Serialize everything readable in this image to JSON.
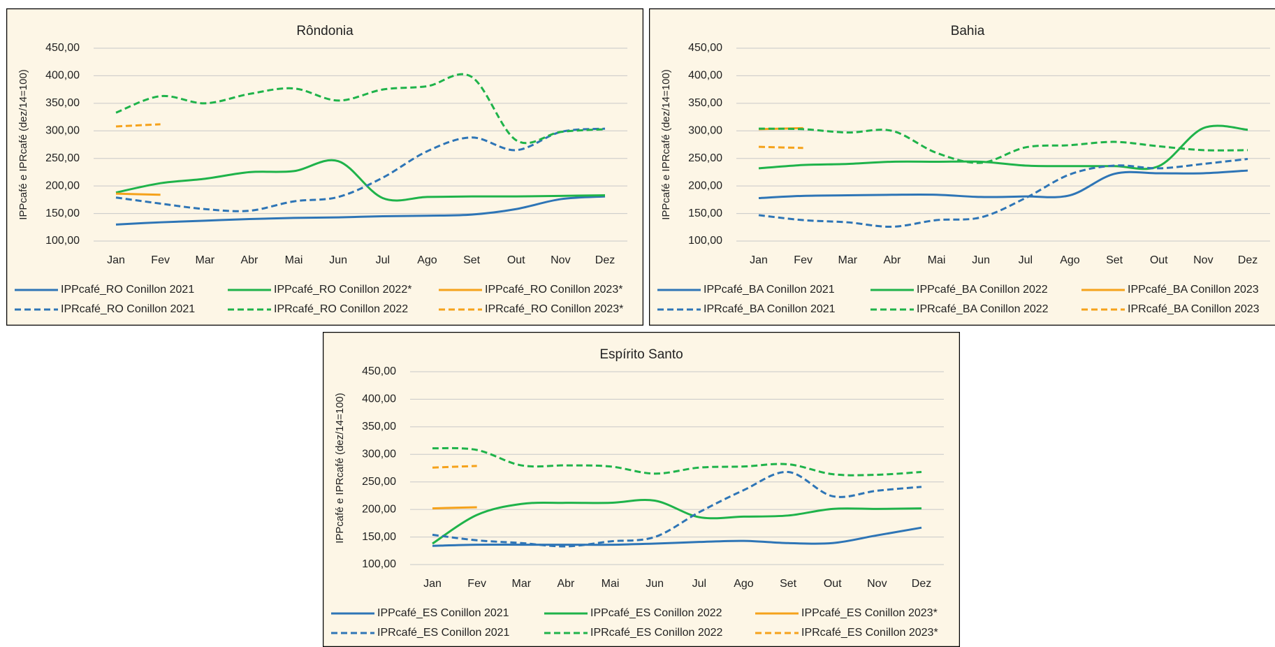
{
  "chart_data": [
    {
      "type": "line",
      "title": "Rôndonia",
      "y_label": "IPPcafé e IPRcafé (dez/14=100)",
      "categories": [
        "Jan",
        "Fev",
        "Mar",
        "Abr",
        "Mai",
        "Jun",
        "Jul",
        "Ago",
        "Set",
        "Out",
        "Nov",
        "Dez"
      ],
      "ylim": [
        100,
        450
      ],
      "yticks": [
        {
          "value": 100,
          "label": "100,00"
        },
        {
          "value": 150,
          "label": "150,00"
        },
        {
          "value": 200,
          "label": "200,00"
        },
        {
          "value": 250,
          "label": "250,00"
        },
        {
          "value": 300,
          "label": "300,00"
        },
        {
          "value": 350,
          "label": "350,00"
        },
        {
          "value": 400,
          "label": "400,00"
        },
        {
          "value": 450,
          "label": "450,00"
        }
      ],
      "grid": true,
      "series": [
        {
          "name": "IPPcafé_RO Conillon 2021",
          "color": "#2e75b6",
          "style": "solid",
          "values": [
            130,
            134,
            137,
            140,
            142,
            143,
            145,
            146,
            148,
            158,
            176,
            181
          ]
        },
        {
          "name": "IPPcafé_RO Conillon 2022*",
          "color": "#1fb34a",
          "style": "solid",
          "values": [
            188,
            205,
            213,
            225,
            227,
            245,
            178,
            180,
            181,
            181,
            182,
            183
          ]
        },
        {
          "name": "IPPcafé_RO Conillon 2023*",
          "color": "#f5a21b",
          "style": "solid",
          "values": [
            186,
            184,
            null,
            null,
            null,
            null,
            null,
            null,
            null,
            null,
            null,
            null
          ]
        },
        {
          "name": "IPRcafé_RO Conillon 2021",
          "color": "#2e75b6",
          "style": "dashed",
          "values": [
            179,
            168,
            158,
            155,
            172,
            180,
            215,
            263,
            288,
            265,
            298,
            304
          ]
        },
        {
          "name": "IPRcafé_RO Conillon 2022",
          "color": "#1fb34a",
          "style": "dashed",
          "values": [
            333,
            363,
            350,
            367,
            377,
            355,
            375,
            381,
            398,
            283,
            298,
            303
          ]
        },
        {
          "name": "IPRcafé_RO Conillon 2023*",
          "color": "#f5a21b",
          "style": "dashed",
          "values": [
            308,
            312,
            null,
            null,
            null,
            null,
            null,
            null,
            null,
            null,
            null,
            null
          ]
        }
      ]
    },
    {
      "type": "line",
      "title": "Bahia",
      "y_label": "IPPcafé e IPRcafé (dez/14=100)",
      "categories": [
        "Jan",
        "Fev",
        "Mar",
        "Abr",
        "Mai",
        "Jun",
        "Jul",
        "Ago",
        "Set",
        "Out",
        "Nov",
        "Dez"
      ],
      "ylim": [
        100,
        450
      ],
      "yticks": [
        {
          "value": 100,
          "label": "100,00"
        },
        {
          "value": 150,
          "label": "150,00"
        },
        {
          "value": 200,
          "label": "200,00"
        },
        {
          "value": 250,
          "label": "250,00"
        },
        {
          "value": 300,
          "label": "300,00"
        },
        {
          "value": 350,
          "label": "350,00"
        },
        {
          "value": 400,
          "label": "400,00"
        },
        {
          "value": 450,
          "label": "450,00"
        }
      ],
      "grid": true,
      "series": [
        {
          "name": "IPPcafé_BA Conillon 2021",
          "color": "#2e75b6",
          "style": "solid",
          "values": [
            178,
            182,
            183,
            184,
            184,
            180,
            181,
            183,
            222,
            223,
            223,
            228
          ]
        },
        {
          "name": "IPPcafé_BA Conillon 2022",
          "color": "#1fb34a",
          "style": "solid",
          "values": [
            232,
            238,
            240,
            244,
            244,
            244,
            237,
            236,
            236,
            236,
            305,
            302
          ]
        },
        {
          "name": "IPPcafé_BA Conillon 2023",
          "color": "#f5a21b",
          "style": "solid",
          "values": [
            303,
            305,
            null,
            null,
            null,
            null,
            null,
            null,
            null,
            null,
            null,
            null
          ]
        },
        {
          "name": "IPRcafé_BA Conillon 2021",
          "color": "#2e75b6",
          "style": "dashed",
          "values": [
            147,
            138,
            134,
            126,
            138,
            143,
            178,
            221,
            237,
            232,
            240,
            249
          ]
        },
        {
          "name": "IPRcafé_BA Conillon 2022",
          "color": "#1fb34a",
          "style": "dashed",
          "values": [
            304,
            303,
            297,
            300,
            260,
            242,
            270,
            274,
            280,
            272,
            265,
            265
          ]
        },
        {
          "name": "IPRcafé_BA Conillon 2023",
          "color": "#f5a21b",
          "style": "dashed",
          "values": [
            271,
            269,
            null,
            null,
            null,
            null,
            null,
            null,
            null,
            null,
            null,
            null
          ]
        }
      ]
    },
    {
      "type": "line",
      "title": "Espírito  Santo",
      "y_label": "IPPcafé e IPRcafé (dez/14=100)",
      "categories": [
        "Jan",
        "Fev",
        "Mar",
        "Abr",
        "Mai",
        "Jun",
        "Jul",
        "Ago",
        "Set",
        "Out",
        "Nov",
        "Dez"
      ],
      "ylim": [
        100,
        450
      ],
      "yticks": [
        {
          "value": 100,
          "label": "100,00"
        },
        {
          "value": 150,
          "label": "150,00"
        },
        {
          "value": 200,
          "label": "200,00"
        },
        {
          "value": 250,
          "label": "250,00"
        },
        {
          "value": 300,
          "label": "300,00"
        },
        {
          "value": 350,
          "label": "350,00"
        },
        {
          "value": 400,
          "label": "400,00"
        },
        {
          "value": 450,
          "label": "450,00"
        }
      ],
      "grid": true,
      "series": [
        {
          "name": "IPPcafé_ES Conillon 2021",
          "color": "#2e75b6",
          "style": "solid",
          "values": [
            134,
            136,
            136,
            136,
            136,
            138,
            141,
            143,
            139,
            139,
            153,
            167
          ]
        },
        {
          "name": "IPPcafé_ES Conillon 2022",
          "color": "#1fb34a",
          "style": "solid",
          "values": [
            138,
            190,
            210,
            212,
            212,
            216,
            186,
            187,
            189,
            201,
            201,
            202
          ]
        },
        {
          "name": "IPPcafé_ES Conillon 2023*",
          "color": "#f5a21b",
          "style": "solid",
          "values": [
            202,
            204,
            null,
            null,
            null,
            null,
            null,
            null,
            null,
            null,
            null,
            null
          ]
        },
        {
          "name": "IPRcafé_ES Conillon 2021",
          "color": "#2e75b6",
          "style": "dashed",
          "values": [
            154,
            144,
            139,
            133,
            142,
            150,
            195,
            235,
            268,
            224,
            234,
            241
          ]
        },
        {
          "name": "IPRcafé_ES Conillon 2022",
          "color": "#1fb34a",
          "style": "dashed",
          "values": [
            311,
            308,
            280,
            280,
            278,
            265,
            276,
            278,
            282,
            264,
            263,
            268
          ]
        },
        {
          "name": "IPRcafé_ES Conillon 2023*",
          "color": "#f5a21b",
          "style": "dashed",
          "values": [
            276,
            279,
            null,
            null,
            null,
            null,
            null,
            null,
            null,
            null,
            null,
            null
          ]
        }
      ]
    }
  ]
}
